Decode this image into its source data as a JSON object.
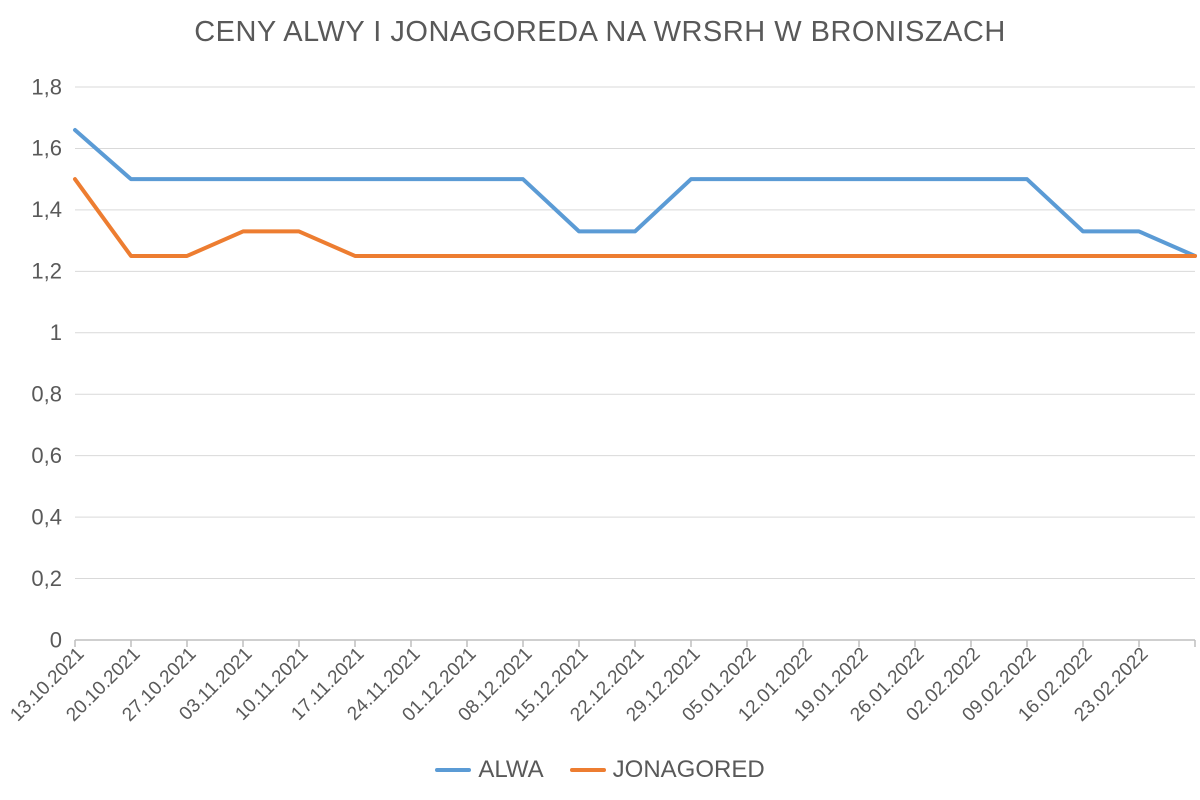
{
  "chart_data": {
    "type": "line",
    "title": "CENY ALWY I JONAGOREDA NA WRSRH W BRONISZACH",
    "categories": [
      "13.10.2021",
      "20.10.2021",
      "27.10.2021",
      "03.11.2021",
      "10.11.2021",
      "17.11.2021",
      "24.11.2021",
      "01.12.2021",
      "08.12.2021",
      "15.12.2021",
      "22.12.2021",
      "29.12.2021",
      "05.01.2022",
      "12.01.2022",
      "19.01.2022",
      "26.01.2022",
      "02.02.2022",
      "09.02.2022",
      "16.02.2022",
      "23.02.2022",
      ""
    ],
    "series": [
      {
        "name": "ALWA",
        "color": "#5B9BD5",
        "values": [
          1.66,
          1.5,
          1.5,
          1.5,
          1.5,
          1.5,
          1.5,
          1.5,
          1.5,
          1.33,
          1.33,
          1.5,
          1.5,
          1.5,
          1.5,
          1.5,
          1.5,
          1.5,
          1.33,
          1.33,
          1.25
        ]
      },
      {
        "name": "JONAGORED",
        "color": "#ED7D31",
        "values": [
          1.5,
          1.25,
          1.25,
          1.33,
          1.33,
          1.25,
          1.25,
          1.25,
          1.25,
          1.25,
          1.25,
          1.25,
          1.25,
          1.25,
          1.25,
          1.25,
          1.25,
          1.25,
          1.25,
          1.25,
          1.25
        ]
      }
    ],
    "xlabel": "",
    "ylabel": "",
    "ylim": [
      0,
      1.8
    ],
    "ytick_step": 0.2,
    "ytick_labels": [
      "0",
      "0,2",
      "0,4",
      "0,6",
      "0,8",
      "1",
      "1,2",
      "1,4",
      "1,6",
      "1,8"
    ],
    "grid": "horizontal",
    "legend_position": "bottom",
    "colors": {
      "grid_line": "#D9D9D9",
      "axis_line": "#BFBFBF",
      "tick_text": "#595959",
      "title_text": "#595959"
    }
  }
}
